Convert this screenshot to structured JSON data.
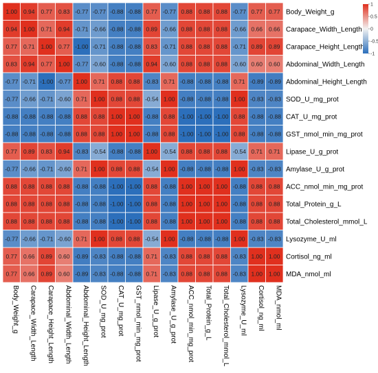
{
  "chart_data": {
    "type": "heatmap",
    "title": "",
    "xlabel": "",
    "ylabel": "",
    "variables": [
      "Body_Weight_g",
      "Carapace_Width_Length",
      "Carapace_Height_Length",
      "Abdominal_Width_Length",
      "Abdominal_Height_Length",
      "SOD_U_mg_prot",
      "CAT_U_mg_prot",
      "GST_nmol_min_mg_prot",
      "Lipase_U_g_prot",
      "Amylase_U_g_prot",
      "ACC_nmol_min_mg_prot",
      "Total_Protein_g_L",
      "Total_Cholesterol_mmol_L",
      "Lysozyme_U_ml",
      "Cortisol_ng_ml",
      "MDA_nmol_ml"
    ],
    "values": [
      [
        1.0,
        0.94,
        0.77,
        0.83,
        -0.77,
        -0.77,
        -0.88,
        -0.88,
        0.77,
        -0.77,
        0.88,
        0.88,
        0.88,
        -0.77,
        0.77,
        0.77
      ],
      [
        0.94,
        1.0,
        0.71,
        0.94,
        -0.71,
        -0.66,
        -0.88,
        -0.88,
        0.89,
        -0.66,
        0.88,
        0.88,
        0.88,
        -0.66,
        0.66,
        0.66
      ],
      [
        0.77,
        0.71,
        1.0,
        0.77,
        -1.0,
        -0.71,
        -0.88,
        -0.88,
        0.83,
        -0.71,
        0.88,
        0.88,
        0.88,
        -0.71,
        0.89,
        0.89
      ],
      [
        0.83,
        0.94,
        0.77,
        1.0,
        -0.77,
        -0.6,
        -0.88,
        -0.88,
        0.94,
        -0.6,
        0.88,
        0.88,
        0.88,
        -0.6,
        0.6,
        0.6
      ],
      [
        -0.77,
        -0.71,
        -1.0,
        -0.77,
        1.0,
        0.71,
        0.88,
        0.88,
        -0.83,
        0.71,
        -0.88,
        -0.88,
        -0.88,
        0.71,
        -0.89,
        -0.89
      ],
      [
        -0.77,
        -0.66,
        -0.71,
        -0.6,
        0.71,
        1.0,
        0.88,
        0.88,
        -0.54,
        1.0,
        -0.88,
        -0.88,
        -0.88,
        1.0,
        -0.83,
        -0.83
      ],
      [
        -0.88,
        -0.88,
        -0.88,
        -0.88,
        0.88,
        0.88,
        1.0,
        1.0,
        -0.88,
        0.88,
        -1.0,
        -1.0,
        -1.0,
        0.88,
        -0.88,
        -0.88
      ],
      [
        -0.88,
        -0.88,
        -0.88,
        -0.88,
        0.88,
        0.88,
        1.0,
        1.0,
        -0.88,
        0.88,
        -1.0,
        -1.0,
        -1.0,
        0.88,
        -0.88,
        -0.88
      ],
      [
        0.77,
        0.89,
        0.83,
        0.94,
        -0.83,
        -0.54,
        -0.88,
        -0.88,
        1.0,
        -0.54,
        0.88,
        0.88,
        0.88,
        -0.54,
        0.71,
        0.71
      ],
      [
        -0.77,
        -0.66,
        -0.71,
        -0.6,
        0.71,
        1.0,
        0.88,
        0.88,
        -0.54,
        1.0,
        -0.88,
        -0.88,
        -0.88,
        1.0,
        -0.83,
        -0.83
      ],
      [
        0.88,
        0.88,
        0.88,
        0.88,
        -0.88,
        -0.88,
        -1.0,
        -1.0,
        0.88,
        -0.88,
        1.0,
        1.0,
        1.0,
        -0.88,
        0.88,
        0.88
      ],
      [
        0.88,
        0.88,
        0.88,
        0.88,
        -0.88,
        -0.88,
        -1.0,
        -1.0,
        0.88,
        -0.88,
        1.0,
        1.0,
        1.0,
        -0.88,
        0.88,
        0.88
      ],
      [
        0.88,
        0.88,
        0.88,
        0.88,
        -0.88,
        -0.88,
        -1.0,
        -1.0,
        0.88,
        -0.88,
        1.0,
        1.0,
        1.0,
        -0.88,
        0.88,
        0.88
      ],
      [
        -0.77,
        -0.66,
        -0.71,
        -0.6,
        0.71,
        1.0,
        0.88,
        0.88,
        -0.54,
        1.0,
        -0.88,
        -0.88,
        -0.88,
        1.0,
        -0.83,
        -0.83
      ],
      [
        0.77,
        0.66,
        0.89,
        0.6,
        -0.89,
        -0.83,
        -0.88,
        -0.88,
        0.71,
        -0.83,
        0.88,
        0.88,
        0.88,
        -0.83,
        1.0,
        1.0
      ],
      [
        0.77,
        0.66,
        0.89,
        0.6,
        -0.89,
        -0.83,
        -0.88,
        -0.88,
        0.71,
        -0.83,
        0.88,
        0.88,
        0.88,
        -0.83,
        1.0,
        1.0
      ]
    ],
    "color_scale": {
      "min": -1,
      "max": 1,
      "low_color": "#2c6fbb",
      "mid_color": "#f2f2f2",
      "high_color": "#e0301e"
    },
    "legend_ticks": [
      1,
      0.5,
      0,
      -0.5,
      -1
    ],
    "legend_placement": "top-right",
    "grid": true
  }
}
